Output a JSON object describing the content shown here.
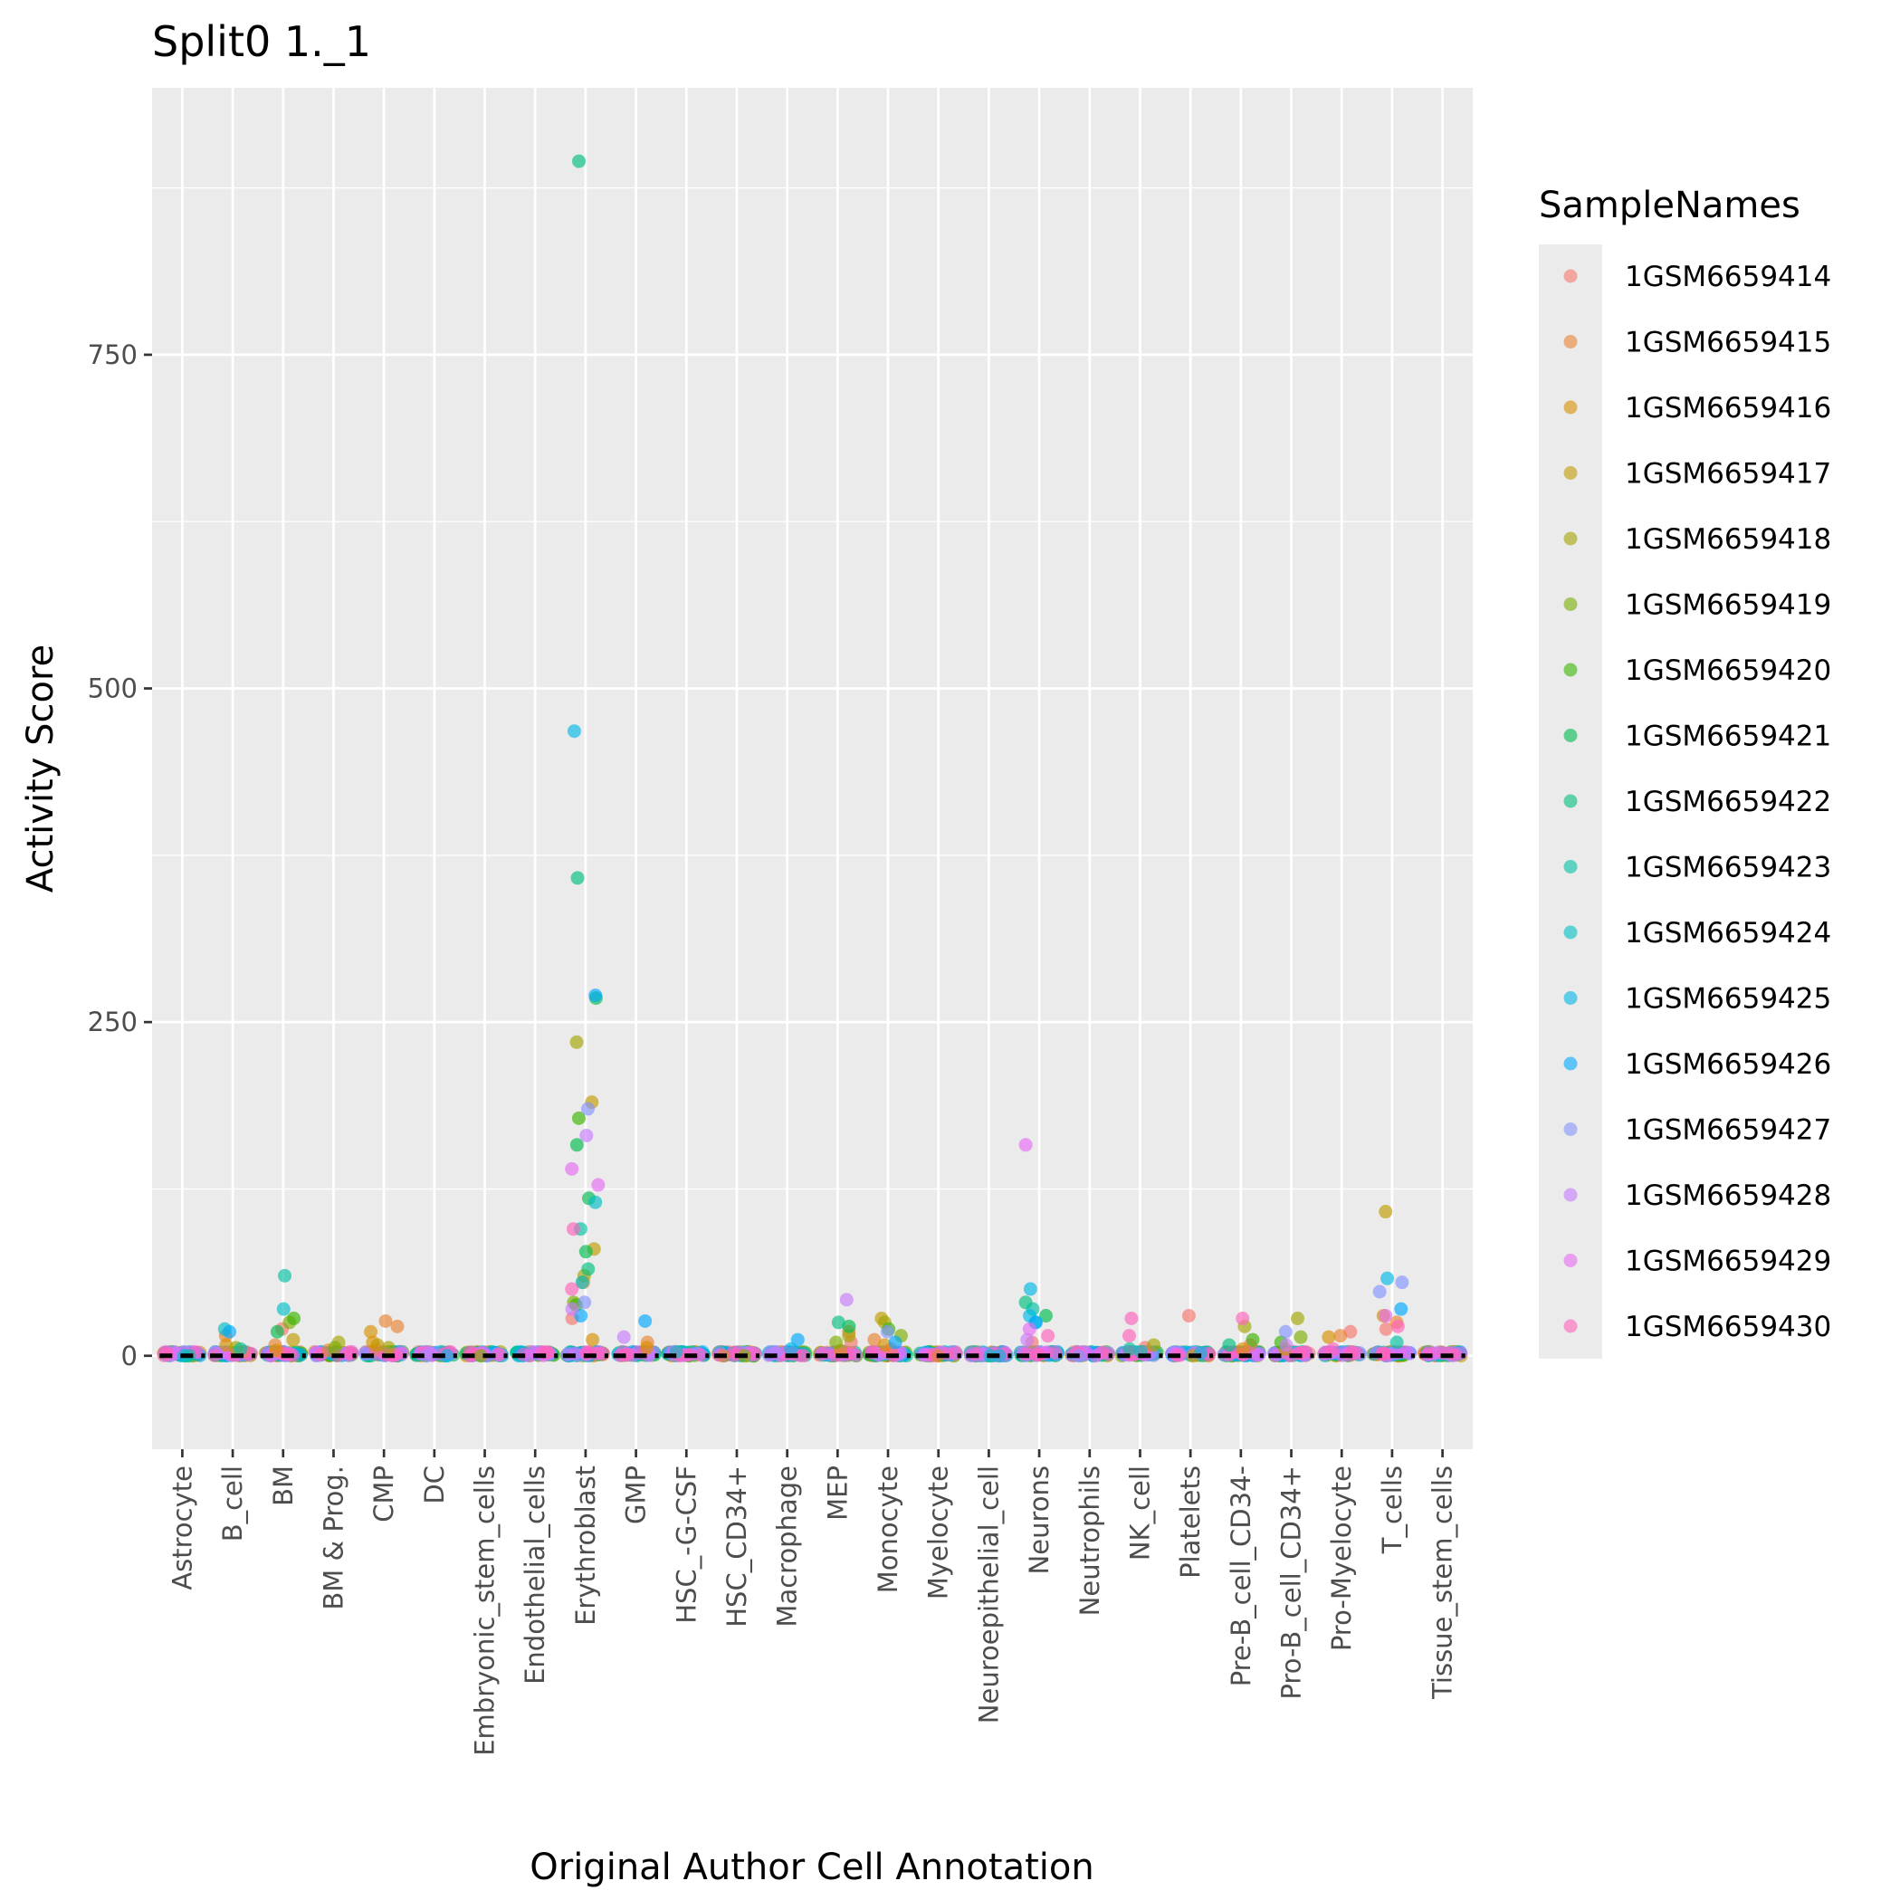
{
  "chart_data": {
    "type": "scatter",
    "title": "Split0 1._1",
    "xlabel": "Original Author Cell Annotation",
    "ylabel": "Activity Score",
    "ylim": [
      -70,
      950
    ],
    "yticks": [
      0,
      250,
      500,
      750
    ],
    "grid": true,
    "legend_position": "right",
    "legend_title": "SampleNames",
    "categories": [
      "Astrocyte",
      "B_cell",
      "BM",
      "BM & Prog.",
      "CMP",
      "DC",
      "Embryonic_stem_cells",
      "Endothelial_cells",
      "Erythroblast",
      "GMP",
      "HSC_-G-CSF",
      "HSC_CD34+",
      "Macrophage",
      "MEP",
      "Monocyte",
      "Myelocyte",
      "Neuroepithelial_cell",
      "Neurons",
      "Neutrophils",
      "NK_cell",
      "Platelets",
      "Pre-B_cell_CD34-",
      "Pro-B_cell_CD34+",
      "Pro-Myelocyte",
      "T_cells",
      "Tissue_stem_cells"
    ],
    "median_bars": [
      0,
      0,
      0,
      0,
      0,
      0,
      0,
      0,
      0,
      0,
      0,
      0,
      0,
      0,
      0,
      0,
      0,
      0,
      0,
      0,
      0,
      0,
      0,
      0,
      0,
      0
    ],
    "series": [
      {
        "name": "1GSM6659414",
        "color": "#F8766D",
        "points": [
          [
            "B_cell",
            3
          ],
          [
            "BM",
            20
          ],
          [
            "CMP",
            5
          ],
          [
            "Erythroblast",
            28
          ],
          [
            "MEP",
            10
          ],
          [
            "Monocyte",
            5
          ],
          [
            "NK_cell",
            6
          ],
          [
            "Pre-B_cell_CD34-",
            8
          ],
          [
            "Pro-Myelocyte",
            18
          ],
          [
            "T_cells",
            20
          ],
          [
            "Platelets",
            30
          ],
          [
            "Neurons",
            10
          ]
        ]
      },
      {
        "name": "1GSM6659415",
        "color": "#EA8331",
        "points": [
          [
            "B_cell",
            15
          ],
          [
            "BM",
            8
          ],
          [
            "BM & Prog.",
            4
          ],
          [
            "CMP",
            22
          ],
          [
            "CMP",
            26
          ],
          [
            "Erythroblast",
            55
          ],
          [
            "GMP",
            10
          ],
          [
            "MEP",
            18
          ],
          [
            "Monocyte",
            12
          ],
          [
            "Pro-Myelocyte",
            15
          ],
          [
            "T_cells",
            25
          ],
          [
            "Myelocyte",
            0
          ],
          [
            "HSC_CD34+",
            0
          ]
        ]
      },
      {
        "name": "1GSM6659416",
        "color": "#D89000",
        "points": [
          [
            "B_cell",
            8
          ],
          [
            "BM",
            4
          ],
          [
            "CMP",
            18
          ],
          [
            "CMP",
            10
          ],
          [
            "Erythroblast",
            12
          ],
          [
            "GMP",
            6
          ],
          [
            "MEP",
            4
          ],
          [
            "Monocyte",
            8
          ],
          [
            "Pro-Myelocyte",
            14
          ],
          [
            "T_cells",
            30
          ],
          [
            "Pre-B_cell_CD34-",
            5
          ]
        ]
      },
      {
        "name": "1GSM6659417",
        "color": "#C09B00",
        "points": [
          [
            "BM",
            12
          ],
          [
            "CMP",
            8
          ],
          [
            "Erythroblast",
            190
          ],
          [
            "Erythroblast",
            80
          ],
          [
            "Monocyte",
            28
          ],
          [
            "T_cells",
            108
          ],
          [
            "Pro-B_cell_CD34+",
            5
          ],
          [
            "Platelets",
            0
          ]
        ]
      },
      {
        "name": "1GSM6659418",
        "color": "#A3A500",
        "points": [
          [
            "B_cell",
            6
          ],
          [
            "BM & Prog.",
            10
          ],
          [
            "CMP",
            6
          ],
          [
            "Erythroblast",
            235
          ],
          [
            "Erythroblast",
            60
          ],
          [
            "MEP",
            15
          ],
          [
            "Monocyte",
            25
          ],
          [
            "NK_cell",
            8
          ],
          [
            "Pro-B_cell_CD34+",
            28
          ],
          [
            "Pre-B_cell_CD34-",
            22
          ]
        ]
      },
      {
        "name": "1GSM6659419",
        "color": "#7CAE00",
        "points": [
          [
            "BM",
            25
          ],
          [
            "BM & Prog.",
            6
          ],
          [
            "Embryonic_stem_cells",
            0
          ],
          [
            "Erythroblast",
            40
          ],
          [
            "HSC_CD34+",
            0
          ],
          [
            "Monocyte",
            15
          ],
          [
            "MEP",
            10
          ],
          [
            "Pro-B_cell_CD34+",
            14
          ]
        ]
      },
      {
        "name": "1GSM6659420",
        "color": "#39B600",
        "points": [
          [
            "BM",
            28
          ],
          [
            "Erythroblast",
            178
          ],
          [
            "Erythroblast",
            38
          ],
          [
            "Monocyte",
            20
          ],
          [
            "Pre-B_cell_CD34-",
            12
          ],
          [
            "Pro-B_cell_CD34+",
            10
          ]
        ]
      },
      {
        "name": "1GSM6659421",
        "color": "#00BB4E",
        "points": [
          [
            "BM",
            18
          ],
          [
            "Erythroblast",
            268
          ],
          [
            "Erythroblast",
            158
          ],
          [
            "Erythroblast",
            118
          ],
          [
            "Erythroblast",
            78
          ],
          [
            "Neurons",
            30
          ],
          [
            "MEP",
            22
          ]
        ]
      },
      {
        "name": "1GSM6659422",
        "color": "#00BF7D",
        "points": [
          [
            "Erythroblast",
            895
          ],
          [
            "Erythroblast",
            358
          ],
          [
            "Erythroblast",
            65
          ],
          [
            "MEP",
            25
          ],
          [
            "Neurons",
            40
          ],
          [
            "Pre-B_cell_CD34-",
            8
          ]
        ]
      },
      {
        "name": "1GSM6659423",
        "color": "#00C1A3",
        "points": [
          [
            "Astrocyte",
            0
          ],
          [
            "BM",
            60
          ],
          [
            "B_cell",
            5
          ],
          [
            "Erythroblast",
            95
          ],
          [
            "Neurons",
            35
          ],
          [
            "NK_cell",
            5
          ],
          [
            "T_cells",
            10
          ]
        ]
      },
      {
        "name": "1GSM6659424",
        "color": "#00BFC4",
        "points": [
          [
            "Astrocyte",
            0
          ],
          [
            "BM",
            35
          ],
          [
            "B_cell",
            20
          ],
          [
            "Erythroblast",
            115
          ],
          [
            "Erythroblast",
            55
          ],
          [
            "Neurons",
            25
          ],
          [
            "Neuroepithelial_cell",
            0
          ],
          [
            "HSC_-G-CSF",
            3
          ],
          [
            "NK_cell",
            3
          ]
        ]
      },
      {
        "name": "1GSM6659425",
        "color": "#00B8E7",
        "points": [
          [
            "Erythroblast",
            468
          ],
          [
            "Neurons",
            50
          ],
          [
            "Neurons",
            30
          ],
          [
            "Neuroepithelial_cell",
            0
          ],
          [
            "DC",
            0
          ],
          [
            "Macrophage",
            5
          ],
          [
            "T_cells",
            58
          ],
          [
            "Platelets",
            2
          ]
        ]
      },
      {
        "name": "1GSM6659426",
        "color": "#00A9FF",
        "points": [
          [
            "B_cell",
            18
          ],
          [
            "Erythroblast",
            270
          ],
          [
            "Erythroblast",
            30
          ],
          [
            "GMP",
            26
          ],
          [
            "Macrophage",
            12
          ],
          [
            "Monocyte",
            10
          ],
          [
            "Neurons",
            25
          ],
          [
            "T_cells",
            35
          ]
        ]
      },
      {
        "name": "1GSM6659427",
        "color": "#8494FF",
        "points": [
          [
            "Erythroblast",
            185
          ],
          [
            "Erythroblast",
            40
          ],
          [
            "Macrophage",
            3
          ],
          [
            "DC",
            0
          ],
          [
            "Monocyte",
            18
          ],
          [
            "Neutrophils",
            0
          ],
          [
            "T_cells",
            48
          ],
          [
            "T_cells",
            55
          ],
          [
            "Pro-B_cell_CD34+",
            18
          ]
        ]
      },
      {
        "name": "1GSM6659428",
        "color": "#C77CFF",
        "points": [
          [
            "Erythroblast",
            165
          ],
          [
            "Erythroblast",
            35
          ],
          [
            "GMP",
            14
          ],
          [
            "Macrophage",
            2
          ],
          [
            "DC",
            2
          ],
          [
            "MEP",
            42
          ],
          [
            "Neurons",
            12
          ],
          [
            "Pro-B_cell_CD34+",
            8
          ]
        ]
      },
      {
        "name": "1GSM6659429",
        "color": "#E76BF3",
        "points": [
          [
            "Erythroblast",
            140
          ],
          [
            "Erythroblast",
            128
          ],
          [
            "Endothelial_cells",
            0
          ],
          [
            "Neurons",
            158
          ],
          [
            "Neurons",
            20
          ],
          [
            "Neutrophils",
            0
          ],
          [
            "T_cells",
            30
          ]
        ]
      },
      {
        "name": "1GSM6659430",
        "color": "#FF62BC",
        "points": [
          [
            "Erythroblast",
            95
          ],
          [
            "Erythroblast",
            50
          ],
          [
            "NK_cell",
            28
          ],
          [
            "NK_cell",
            15
          ],
          [
            "Pre-B_cell_CD34-",
            28
          ],
          [
            "Pro-Myelocyte",
            5
          ],
          [
            "T_cells",
            22
          ],
          [
            "Neurons",
            15
          ]
        ]
      }
    ]
  }
}
